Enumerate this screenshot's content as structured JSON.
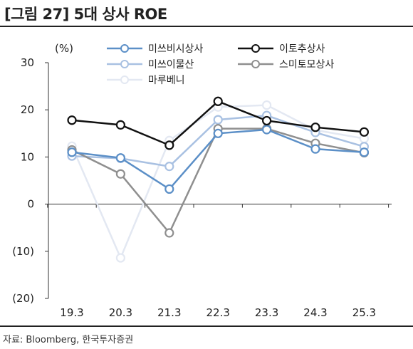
{
  "header": {
    "title": "[그림 27] 5대 상사 ROE",
    "source": "자료: Bloomberg, 한국투자증권"
  },
  "chart_data": {
    "type": "line",
    "title": "[그림 27] 5대 상사 ROE",
    "unit_label": "(%)",
    "categories": [
      "19.3",
      "20.3",
      "21.3",
      "22.3",
      "23.3",
      "24.3",
      "25.3"
    ],
    "ylim": [
      -20,
      30
    ],
    "yticks": [
      30,
      20,
      10,
      0,
      -10,
      -20
    ],
    "ytick_labels": [
      "30",
      "20",
      "10",
      "0",
      "(10)",
      "(20)"
    ],
    "grid": false,
    "legend_position": "top",
    "series": [
      {
        "name": "미쓰비시상사",
        "color": "#5b8fc7",
        "values": [
          11.0,
          9.8,
          3.2,
          15.0,
          15.8,
          11.7,
          11.0
        ]
      },
      {
        "name": "이토추상사",
        "color": "#111111",
        "values": [
          17.8,
          16.8,
          12.5,
          21.8,
          17.7,
          16.3,
          15.3
        ]
      },
      {
        "name": "미쓰이물산",
        "color": "#a9c1e2",
        "values": [
          10.2,
          9.7,
          8.0,
          17.9,
          18.8,
          15.2,
          12.2
        ]
      },
      {
        "name": "스미토모상사",
        "color": "#8f8f8f",
        "values": [
          11.5,
          6.4,
          -6.1,
          16.0,
          16.0,
          12.9,
          10.9
        ]
      },
      {
        "name": "마루베니",
        "color": "#e3e8f2",
        "values": [
          12.3,
          -11.4,
          13.5,
          20.6,
          21.0,
          15.7,
          13.9
        ]
      }
    ]
  }
}
